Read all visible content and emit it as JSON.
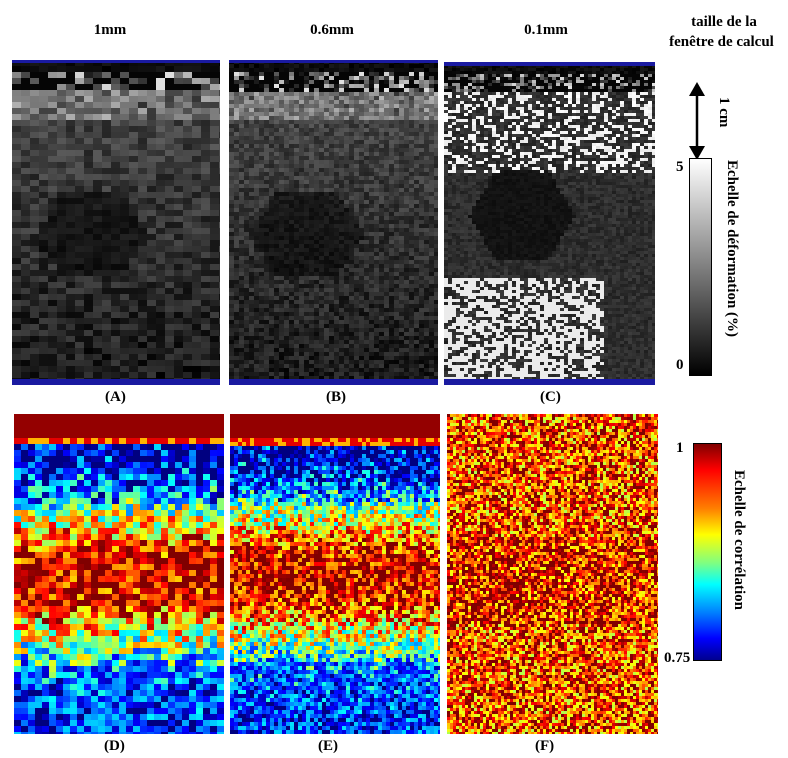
{
  "headers": {
    "col1": "1mm",
    "col2": "0.6mm",
    "col3": "0.1mm",
    "window_size_line1": "taille de la",
    "window_size_line2": "fenêtre de calcul"
  },
  "panel_labels": {
    "A": "(A)",
    "B": "(B)",
    "C": "(C)",
    "D": "(D)",
    "E": "(E)",
    "F": "(F)"
  },
  "scale_bar": {
    "label": "1 cm"
  },
  "strain_scale": {
    "title": "Echelle de déformation (%)",
    "max_label": "5",
    "min_label": "0"
  },
  "correlation_scale": {
    "title": "Echelle de corrélation",
    "max_label": "1",
    "min_label": "0.75"
  },
  "colors": {
    "panel_border": "#1a1aa0",
    "jet_low": "#00008f",
    "jet_high": "#800000"
  }
}
